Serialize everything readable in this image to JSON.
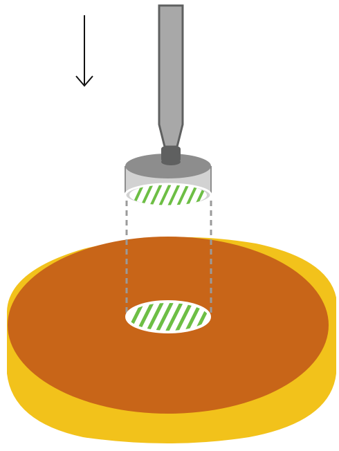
{
  "diagram": {
    "direction": "down",
    "colors": {
      "dish_rim": "#F2C21B",
      "agar": "#C86518",
      "sample_fill": "#FFFFFF",
      "sample_stripes": "#6DBE45",
      "outline": "#FFFFFF",
      "rod_light": "#A8A8A8",
      "rod_dark": "#5F6060",
      "cylinder_glass": "#D2D2D2",
      "cylinder_top": "#8D8D8D",
      "dashed_guide": "#9A9A9A",
      "arrow": "#111111"
    },
    "icons": [
      "down-arrow-icon"
    ]
  }
}
